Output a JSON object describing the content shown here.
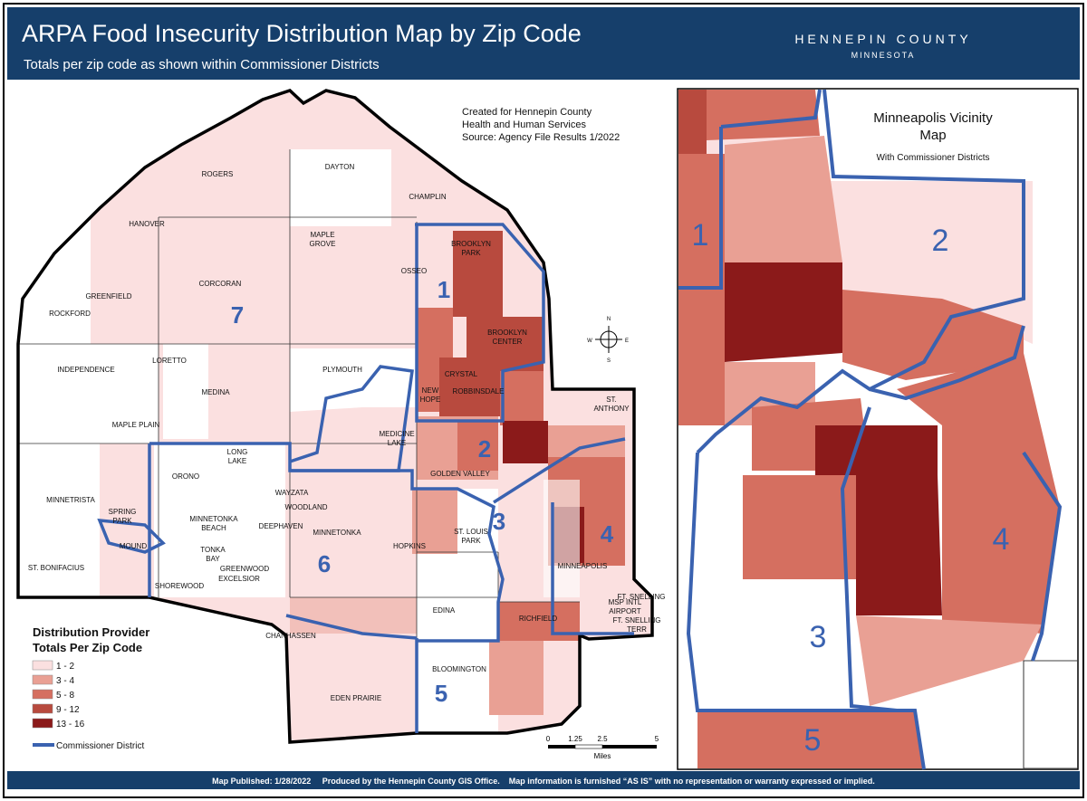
{
  "header": {
    "title": "ARPA Food Insecurity Distribution Map by Zip Code",
    "subtitle": "Totals per zip code as shown within Commissioner Districts",
    "agency": "HENNEPIN COUNTY",
    "state": "MINNESOTA"
  },
  "credits": [
    "Created for Hennepin County",
    "Health and Human Services",
    "Source: Agency File Results 1/2022"
  ],
  "map": {
    "places": [
      [
        "ROGERS"
      ],
      [
        "DAYTON"
      ],
      [
        "CHAMPLIN"
      ],
      [
        "HANOVER"
      ],
      [
        "MAPLE",
        "GROVE"
      ],
      [
        "BROOKLYN",
        "PARK"
      ],
      [
        "OSSEO"
      ],
      [
        "CORCORAN"
      ],
      [
        "GREENFIELD"
      ],
      [
        "ROCKFORD"
      ],
      [
        "BROOKLYN",
        "CENTER"
      ],
      [
        "LORETTO"
      ],
      [
        "INDEPENDENCE"
      ],
      [
        "PLYMOUTH"
      ],
      [
        "CRYSTAL"
      ],
      [
        "NEW",
        "HOPE"
      ],
      [
        "ROBBINSDALE"
      ],
      [
        "MEDINA"
      ],
      [
        "ST.",
        "ANTHONY"
      ],
      [
        "MAPLE PLAIN"
      ],
      [
        "MEDICINE",
        "LAKE"
      ],
      [
        "LONG",
        "LAKE"
      ],
      [
        "ORONO"
      ],
      [
        "GOLDEN VALLEY"
      ],
      [
        "WAYZATA"
      ],
      [
        "MINNETRISTA"
      ],
      [
        "WOODLAND"
      ],
      [
        "SPRING",
        "PARK"
      ],
      [
        "MINNETONKA",
        "BEACH"
      ],
      [
        "DEEPHAVEN"
      ],
      [
        "MINNETONKA"
      ],
      [
        "ST. LOUIS",
        "PARK"
      ],
      [
        "MOUND"
      ],
      [
        "HOPKINS"
      ],
      [
        "TONKA",
        "BAY"
      ],
      [
        "GREENWOOD"
      ],
      [
        "ST. BONIFACIUS"
      ],
      [
        "EXCELSIOR"
      ],
      [
        "MINNEAPOLIS"
      ],
      [
        "SHOREWOOD"
      ],
      [
        "MSP INTL",
        "AIRPORT"
      ],
      [
        "FT. SNELLING"
      ],
      [
        "FT. SNELLING",
        "TERR"
      ],
      [
        "EDINA"
      ],
      [
        "RICHFIELD"
      ],
      [
        "CHANHASSEN"
      ],
      [
        "BLOOMINGTON"
      ],
      [
        "EDEN PRAIRIE"
      ]
    ],
    "districts": [
      "7",
      "1",
      "2",
      "3",
      "4",
      "6",
      "5"
    ],
    "compass": [
      "N",
      "E",
      "S",
      "W"
    ]
  },
  "legend": {
    "title": [
      "Distribution Provider",
      "Totals Per Zip Code"
    ],
    "items": [
      "1 - 2",
      "3 - 4",
      "5 - 8",
      "9 - 12",
      "13 - 16"
    ],
    "district_label": "Commissioner District"
  },
  "scale": {
    "ticks": [
      "0",
      "1.25",
      "2.5",
      "5"
    ],
    "unit": "Miles"
  },
  "inset": {
    "title": [
      "Minneapolis Vicinity",
      "Map"
    ],
    "subtitle": "With Commissioner Districts",
    "districts": [
      "1",
      "2",
      "3",
      "4",
      "5"
    ]
  },
  "footer": "Map Published: 1/28/2022     Produced by the Hennepin County GIS Office.    Map information is furnished “AS IS” with no representation or warranty expressed or implied."
}
